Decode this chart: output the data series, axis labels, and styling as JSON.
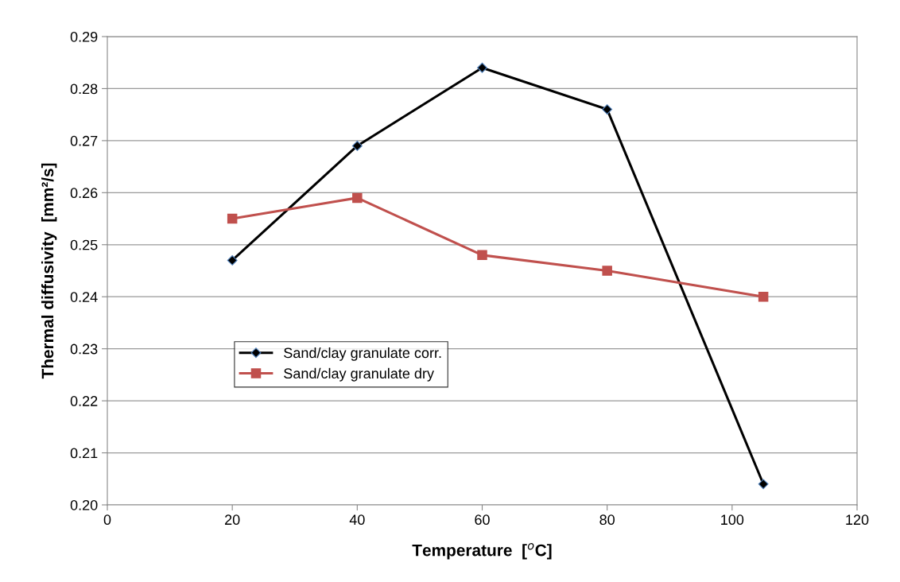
{
  "chart_data": {
    "type": "line",
    "xlabel": "Temperature  [$^{o}$C]",
    "ylabel": "Thermal diffusivity  [mm²/s]",
    "x": [
      20,
      40,
      60,
      80,
      105
    ],
    "series": [
      {
        "name": "Sand/clay granulate corr.",
        "color": "#000000",
        "marker": "diamond",
        "values": [
          0.247,
          0.269,
          0.284,
          0.276,
          0.204
        ]
      },
      {
        "name": "Sand/clay granulate dry",
        "color": "#c0504d",
        "marker": "square",
        "values": [
          0.255,
          0.259,
          0.248,
          0.245,
          0.24
        ]
      }
    ],
    "xlim": [
      0,
      120
    ],
    "xticks": [
      0,
      20,
      40,
      60,
      80,
      100,
      120
    ],
    "ylim": [
      0.2,
      0.29
    ],
    "yticks": [
      {
        "value": 0.2,
        "label": "0.20"
      },
      {
        "value": 0.21,
        "label": "0.21"
      },
      {
        "value": 0.22,
        "label": "0.22"
      },
      {
        "value": 0.23,
        "label": "0.23"
      },
      {
        "value": 0.24,
        "label": "0.24"
      },
      {
        "value": 0.25,
        "label": "0.25"
      },
      {
        "value": 0.26,
        "label": "0.26"
      },
      {
        "value": 0.27,
        "label": "0.27"
      },
      {
        "value": 0.28,
        "label": "0.28"
      },
      {
        "value": 0.29,
        "label": "0.29"
      }
    ],
    "grid": "y",
    "legend": "center left",
    "line_style": "solid"
  }
}
